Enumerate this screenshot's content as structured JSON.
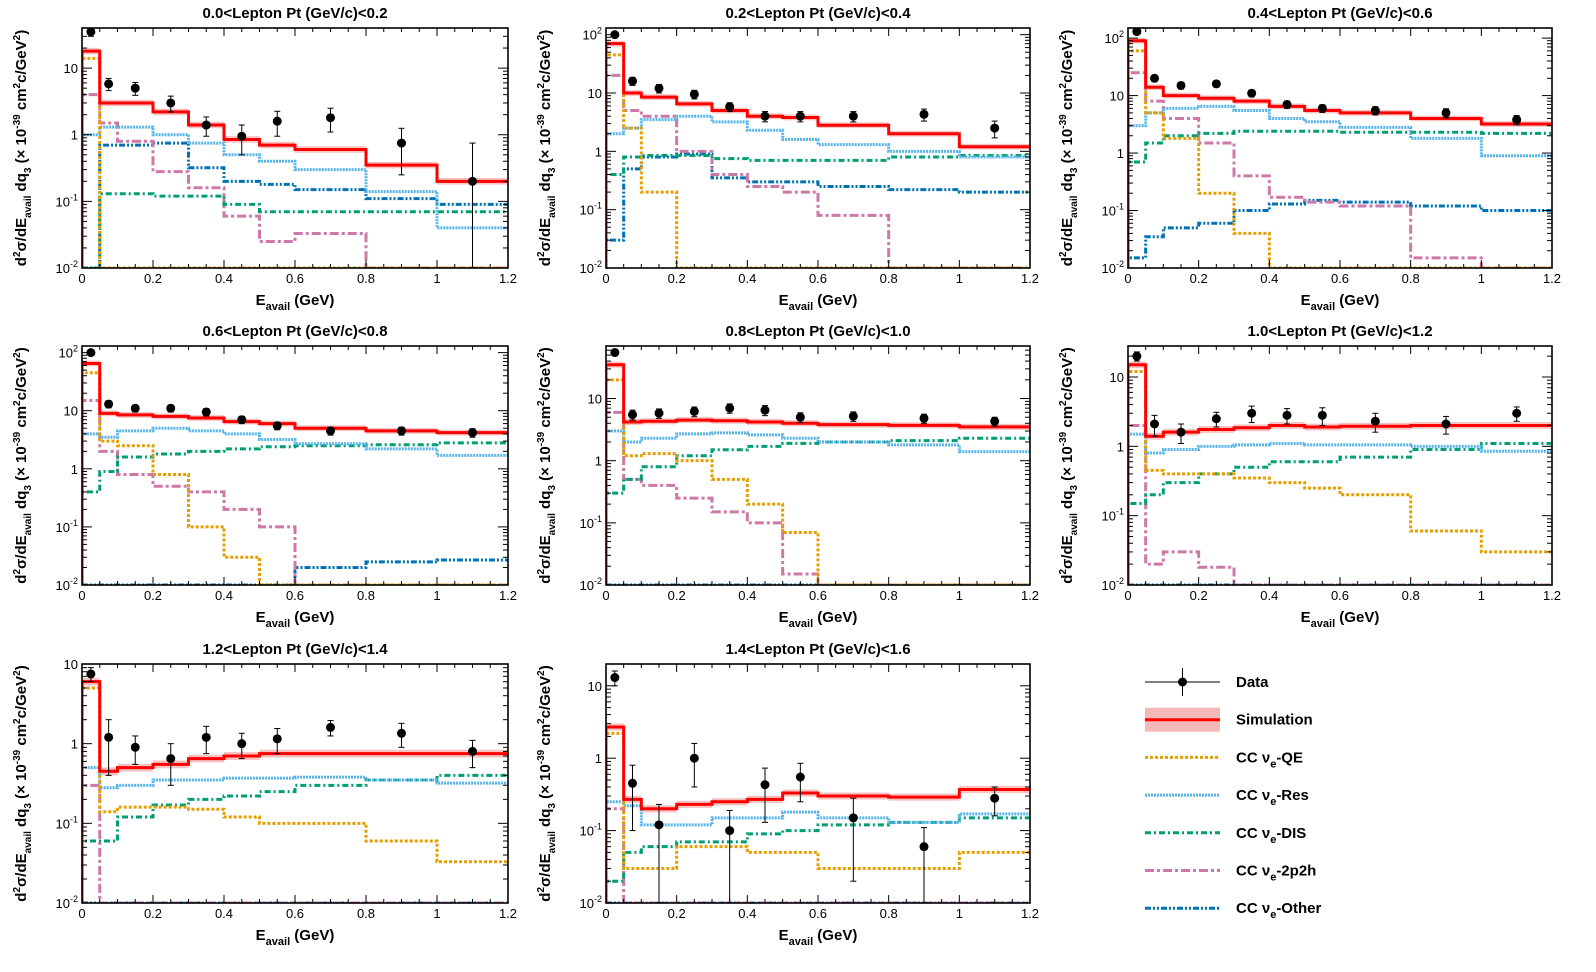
{
  "chart_data": {
    "type": "line",
    "layout": "3x3 grid of step-histogram panels, lower-right cell holds the legend",
    "xlabel_main": "E",
    "xlabel_sub": "avail",
    "xlabel_unit": " (GeV)",
    "ylabel_parts": {
      "d": "d",
      "two": "2",
      "sigma_over_dE": "σ/dE",
      "avail": "avail",
      "dq": " dq",
      "three": "3",
      "open": " (× 10",
      "minus39": "-39",
      "cm": " cm",
      "two2": "2",
      "c_per_GeV": "c/GeV",
      "two3": "2",
      "close": ")"
    },
    "xlim": [
      0,
      1.2
    ],
    "ylim": [
      0.01,
      200
    ],
    "yscale": "log",
    "x_ticks": [
      "0",
      "0.2",
      "0.4",
      "0.6",
      "0.8",
      "1",
      "1.2"
    ],
    "y_tick_labels": [
      {
        "base": "10",
        "exp": "-2"
      },
      {
        "base": "10",
        "exp": "-1"
      },
      {
        "base": "1",
        "exp": ""
      },
      {
        "base": "10",
        "exp": ""
      },
      {
        "base": "10",
        "exp": "2"
      }
    ],
    "bin_edges": [
      0,
      0.05,
      0.1,
      0.2,
      0.3,
      0.4,
      0.5,
      0.6,
      0.8,
      1.0,
      1.2
    ],
    "series_styles": [
      {
        "name": "Simulation",
        "color": "#ff0000",
        "dash": ""
      },
      {
        "name": "CC νe-QE",
        "color": "#e69f00",
        "dash": "3,2"
      },
      {
        "name": "CC νe-Res",
        "color": "#56b4e9",
        "dash": "2,1"
      },
      {
        "name": "CC νe-DIS",
        "color": "#009e73",
        "dash": "6,3,2,3"
      },
      {
        "name": "CC νe-2p2h",
        "color": "#cc79a7",
        "dash": "9,3,3,3"
      },
      {
        "name": "CC νe-Other",
        "color": "#0072b2",
        "dash": "6,2,2,2,2,2"
      }
    ],
    "band_color": "#f5b8b8",
    "panels": [
      {
        "title": "0.0<Lepton Pt (GeV/c)<0.2",
        "ymax": 40,
        "y_ticks_shown": [
          0,
          1,
          2,
          3
        ],
        "data_x": [
          0.025,
          0.075,
          0.15,
          0.25,
          0.35,
          0.45,
          0.55,
          0.7,
          0.9,
          1.1
        ],
        "data_y": [
          35,
          5.8,
          5,
          3,
          1.4,
          0.95,
          1.6,
          1.8,
          0.75,
          0.2
        ],
        "data_err": [
          5,
          1.2,
          1.1,
          0.8,
          0.45,
          0.45,
          0.65,
          0.7,
          0.5,
          0.55
        ],
        "simulation": [
          18,
          3,
          3,
          2.2,
          1.4,
          0.85,
          0.7,
          0.6,
          0.35,
          0.2
        ],
        "qe": [
          14,
          0.01,
          0.01,
          0.01,
          0.01,
          0.01,
          0.01,
          0.01,
          0.01,
          0.01
        ],
        "res": [
          1,
          1.3,
          1.3,
          1,
          0.75,
          0.5,
          0.4,
          0.3,
          0.14,
          0.04
        ],
        "dis": [
          0.01,
          0.13,
          0.13,
          0.12,
          0.12,
          0.09,
          0.07,
          0.07,
          0.07,
          0.07
        ],
        "mec": [
          4,
          1.5,
          0.8,
          0.28,
          0.16,
          0.06,
          0.025,
          0.033,
          0.01,
          0.01
        ],
        "other": [
          0.01,
          0.7,
          0.7,
          0.75,
          0.32,
          0.2,
          0.18,
          0.15,
          0.11,
          0.09
        ]
      },
      {
        "title": "0.2<Lepton Pt (GeV/c)<0.4",
        "ymax": 130,
        "y_ticks_shown": [
          0,
          1,
          2,
          3,
          4
        ],
        "data_x": [
          0.025,
          0.075,
          0.15,
          0.25,
          0.35,
          0.45,
          0.55,
          0.7,
          0.9,
          1.1
        ],
        "data_y": [
          100,
          16,
          12,
          9.5,
          5.8,
          4,
          4,
          4,
          4.3,
          2.5
        ],
        "data_err": [
          10,
          2.5,
          2,
          1.6,
          1,
          0.8,
          0.8,
          0.8,
          1,
          0.8
        ],
        "simulation": [
          70,
          10,
          8.5,
          6.5,
          5,
          4,
          3.8,
          2.8,
          2,
          1.2
        ],
        "qe": [
          45,
          2.5,
          0.2,
          0.01,
          0.01,
          0.01,
          0.01,
          0.01,
          0.01,
          0.01
        ],
        "res": [
          2,
          2.5,
          3.5,
          4,
          3.2,
          2.3,
          1.6,
          1.3,
          1,
          0.8
        ],
        "dis": [
          0.4,
          0.8,
          0.85,
          0.85,
          0.75,
          0.7,
          0.7,
          0.7,
          0.8,
          0.85
        ],
        "mec": [
          20,
          5,
          4,
          1,
          0.4,
          0.25,
          0.2,
          0.08,
          0.01,
          0.01
        ],
        "other": [
          0.03,
          0.5,
          0.8,
          0.9,
          0.35,
          0.3,
          0.3,
          0.25,
          0.22,
          0.2
        ]
      },
      {
        "title": "0.4<Lepton Pt (GeV/c)<0.6",
        "ymax": 150,
        "y_ticks_shown": [
          0,
          1,
          2,
          3,
          4
        ],
        "data_x": [
          0.025,
          0.075,
          0.15,
          0.25,
          0.35,
          0.45,
          0.55,
          0.7,
          0.9,
          1.1
        ],
        "data_y": [
          130,
          20,
          15,
          16,
          11,
          7,
          6,
          5.5,
          5,
          3.8
        ],
        "data_err": [
          12,
          2.5,
          2,
          2,
          1.5,
          1,
          0.9,
          0.9,
          0.9,
          0.7
        ],
        "simulation": [
          90,
          14,
          10,
          9,
          8,
          6.5,
          5.5,
          5,
          4,
          3.2
        ],
        "qe": [
          60,
          5,
          1.8,
          0.2,
          0.04,
          0.01,
          0.01,
          0.01,
          0.01,
          0.01
        ],
        "res": [
          3,
          5,
          6,
          6.5,
          5.5,
          4,
          3.5,
          2.8,
          1.8,
          0.9
        ],
        "dis": [
          0.7,
          1.5,
          2,
          2.2,
          2.4,
          2.4,
          2.4,
          2.3,
          2.3,
          2.2
        ],
        "mec": [
          25,
          8,
          4,
          1.5,
          0.4,
          0.17,
          0.14,
          0.12,
          0.015,
          0.01
        ],
        "other": [
          0.015,
          0.035,
          0.05,
          0.06,
          0.1,
          0.13,
          0.15,
          0.14,
          0.12,
          0.1
        ]
      },
      {
        "title": "0.6<Lepton Pt (GeV/c)<0.8",
        "ymax": 130,
        "y_ticks_shown": [
          0,
          1,
          2,
          3,
          4
        ],
        "data_x": [
          0.025,
          0.075,
          0.15,
          0.25,
          0.35,
          0.45,
          0.55,
          0.7,
          0.9,
          1.1
        ],
        "data_y": [
          100,
          13,
          11,
          11,
          9.5,
          7,
          5.5,
          4.5,
          4.5,
          4.2
        ],
        "data_err": [
          10,
          1.8,
          1.5,
          1.5,
          1.4,
          1,
          0.8,
          0.7,
          0.7,
          0.7
        ],
        "simulation": [
          65,
          9,
          8.5,
          8,
          7.5,
          6.5,
          6,
          5,
          4.5,
          4.2
        ],
        "qe": [
          45,
          3,
          2.5,
          0.8,
          0.1,
          0.03,
          0.01,
          0.01,
          0.01,
          0.01
        ],
        "res": [
          4,
          3.5,
          4.5,
          5,
          4.5,
          4,
          3.2,
          2.7,
          2.2,
          1.7
        ],
        "dis": [
          0.4,
          0.9,
          1.6,
          1.8,
          2,
          2.2,
          2.4,
          2.5,
          2.6,
          2.8
        ],
        "mec": [
          15,
          2,
          0.8,
          0.5,
          0.4,
          0.2,
          0.1,
          0.01,
          0.01,
          0.01
        ],
        "other": [
          0.01,
          0.01,
          0.01,
          0.01,
          0.01,
          0.01,
          0.01,
          0.02,
          0.025,
          0.027
        ]
      },
      {
        "title": "0.8<Lepton Pt (GeV/c)<1.0",
        "ymax": 70,
        "y_ticks_shown": [
          0,
          1,
          2,
          3
        ],
        "data_x": [
          0.025,
          0.075,
          0.15,
          0.25,
          0.35,
          0.45,
          0.55,
          0.7,
          0.9,
          1.1
        ],
        "data_y": [
          55,
          5.5,
          5.8,
          6.2,
          7,
          6.5,
          5,
          5.2,
          4.8,
          4.3
        ],
        "data_err": [
          6,
          1,
          1,
          1.1,
          1.2,
          1.2,
          0.9,
          0.9,
          0.8,
          0.7
        ],
        "simulation": [
          35,
          4.2,
          4.3,
          4.5,
          4.4,
          4.2,
          4,
          3.8,
          3.7,
          3.5
        ],
        "qe": [
          20,
          1.2,
          1.3,
          1,
          0.5,
          0.2,
          0.07,
          0.01,
          0.01,
          0.01
        ],
        "res": [
          3,
          2,
          2.3,
          2.7,
          2.8,
          2.6,
          2.3,
          2,
          1.8,
          1.4
        ],
        "dis": [
          0.3,
          0.5,
          0.8,
          1.2,
          1.5,
          1.7,
          1.9,
          2,
          2.1,
          2.3
        ],
        "mec": [
          6,
          0.5,
          0.4,
          0.25,
          0.15,
          0.1,
          0.015,
          0.01,
          0.01,
          0.01
        ],
        "other": [
          0.01,
          0.01,
          0.01,
          0.01,
          0.01,
          0.01,
          0.01,
          0.01,
          0.01,
          0.01
        ]
      },
      {
        "title": "1.0<Lepton Pt (GeV/c)<1.2",
        "ymax": 28,
        "y_ticks_shown": [
          0,
          1,
          2,
          3
        ],
        "data_x": [
          0.025,
          0.075,
          0.15,
          0.25,
          0.35,
          0.45,
          0.55,
          0.7,
          0.9,
          1.1
        ],
        "data_y": [
          20,
          2.1,
          1.6,
          2.5,
          3,
          2.8,
          2.8,
          2.3,
          2.1,
          3
        ],
        "data_err": [
          3,
          0.7,
          0.5,
          0.6,
          0.8,
          0.7,
          0.8,
          0.7,
          0.6,
          0.7
        ],
        "simulation": [
          15,
          1.4,
          1.6,
          1.75,
          1.85,
          2,
          1.9,
          1.95,
          2,
          2
        ],
        "qe": [
          12,
          0.45,
          0.4,
          0.4,
          0.35,
          0.3,
          0.25,
          0.2,
          0.06,
          0.03
        ],
        "res": [
          1.5,
          0.8,
          0.9,
          1,
          1.05,
          1.1,
          1.05,
          1.05,
          1,
          0.85
        ],
        "dis": [
          0.15,
          0.2,
          0.3,
          0.4,
          0.5,
          0.6,
          0.6,
          0.7,
          0.9,
          1.1
        ],
        "mec": [
          2,
          0.02,
          0.03,
          0.018,
          0.01,
          0.01,
          0.01,
          0.01,
          0.01,
          0.01
        ],
        "other": [
          0.01,
          0.01,
          0.01,
          0.01,
          0.01,
          0.01,
          0.01,
          0.01,
          0.01,
          0.01
        ]
      },
      {
        "title": "1.2<Lepton Pt (GeV/c)<1.4",
        "ymax": 10,
        "y_ticks_shown": [
          0,
          1,
          2,
          3
        ],
        "data_x": [
          0.025,
          0.075,
          0.15,
          0.25,
          0.35,
          0.45,
          0.55,
          0.7,
          0.9,
          1.1
        ],
        "data_y": [
          7.5,
          1.2,
          0.9,
          0.65,
          1.2,
          1,
          1.15,
          1.6,
          1.35,
          0.8
        ],
        "data_err": [
          1.5,
          0.8,
          0.35,
          0.35,
          0.45,
          0.35,
          0.4,
          0.35,
          0.45,
          0.3
        ],
        "simulation": [
          6,
          0.45,
          0.5,
          0.55,
          0.65,
          0.7,
          0.75,
          0.75,
          0.75,
          0.75
        ],
        "qe": [
          5,
          0.14,
          0.16,
          0.16,
          0.15,
          0.12,
          0.1,
          0.1,
          0.06,
          0.033
        ],
        "res": [
          0.5,
          0.28,
          0.3,
          0.35,
          0.35,
          0.37,
          0.37,
          0.38,
          0.35,
          0.32
        ],
        "dis": [
          0.06,
          0.06,
          0.12,
          0.17,
          0.2,
          0.22,
          0.25,
          0.3,
          0.35,
          0.4
        ],
        "mec": [
          0.3,
          0.01,
          0.01,
          0.01,
          0.01,
          0.01,
          0.01,
          0.01,
          0.01,
          0.01
        ],
        "other": [
          0.01,
          0.01,
          0.01,
          0.01,
          0.01,
          0.01,
          0.01,
          0.01,
          0.01,
          0.01
        ]
      },
      {
        "title": "1.4<Lepton Pt (GeV/c)<1.6",
        "ymax": 20,
        "y_ticks_shown": [
          0,
          1,
          2,
          3
        ],
        "data_x": [
          0.025,
          0.075,
          0.15,
          0.25,
          0.35,
          0.45,
          0.55,
          0.7,
          0.9,
          1.1
        ],
        "data_y": [
          13,
          0.45,
          0.12,
          1,
          0.1,
          0.43,
          0.55,
          0.15,
          0.06,
          0.28
        ],
        "data_err": [
          3,
          0.35,
          0.11,
          0.6,
          0.09,
          0.3,
          0.3,
          0.13,
          0.05,
          0.12
        ],
        "simulation": [
          2.7,
          0.27,
          0.2,
          0.23,
          0.25,
          0.27,
          0.33,
          0.3,
          0.29,
          0.37
        ],
        "qe": [
          2.2,
          0.03,
          0.03,
          0.06,
          0.06,
          0.05,
          0.05,
          0.03,
          0.03,
          0.05
        ],
        "res": [
          0.25,
          0.22,
          0.12,
          0.12,
          0.15,
          0.15,
          0.18,
          0.15,
          0.13,
          0.17
        ],
        "dis": [
          0.02,
          0.05,
          0.06,
          0.07,
          0.07,
          0.09,
          0.1,
          0.12,
          0.13,
          0.15
        ],
        "mec": [
          0.2,
          0.01,
          0.01,
          0.01,
          0.01,
          0.01,
          0.01,
          0.01,
          0.01,
          0.01
        ],
        "other": [
          0.01,
          0.01,
          0.01,
          0.01,
          0.01,
          0.01,
          0.01,
          0.01,
          0.01,
          0.01
        ]
      }
    ],
    "legend": {
      "position": "bottom-right cell",
      "entries": [
        {
          "kind": "data",
          "label": "Data"
        },
        {
          "kind": "sim",
          "label": "Simulation"
        },
        {
          "kind": "line",
          "series": 1,
          "label_pre": "CC  ν",
          "label_sub": "e",
          "label_post": "-QE"
        },
        {
          "kind": "line",
          "series": 2,
          "label_pre": "CC  ν",
          "label_sub": "e",
          "label_post": "-Res"
        },
        {
          "kind": "line",
          "series": 3,
          "label_pre": "CC  ν",
          "label_sub": "e",
          "label_post": "-DIS"
        },
        {
          "kind": "line",
          "series": 4,
          "label_pre": "CC  ν",
          "label_sub": "e",
          "label_post": "-2p2h"
        },
        {
          "kind": "line",
          "series": 5,
          "label_pre": "CC  ν",
          "label_sub": "e",
          "label_post": "-Other"
        }
      ]
    }
  }
}
